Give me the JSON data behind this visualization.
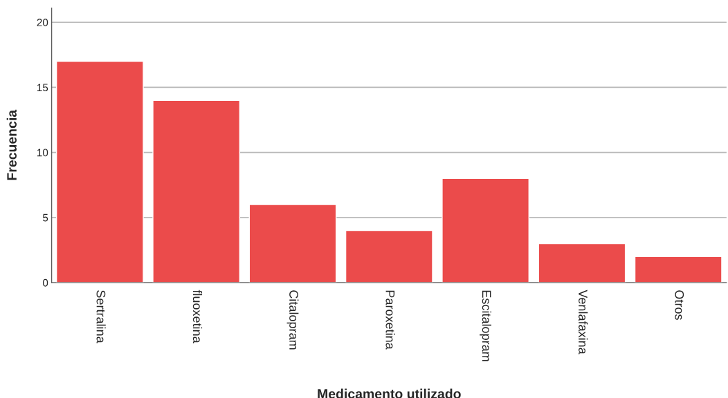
{
  "chart_data": {
    "type": "bar",
    "xlabel": "Medicamento utilizado",
    "ylabel": "Frecuencia",
    "categories": [
      "Sertralina",
      "fluoxetina",
      "Citalopram",
      "Paroxetina",
      "Escitalopram",
      "Venlafaxina",
      "Otros"
    ],
    "values": [
      17,
      14,
      6,
      4,
      8,
      3,
      2
    ],
    "color": "#eb4b4b",
    "ylim": [
      0,
      21.1
    ],
    "yticks": [
      0,
      5,
      10,
      15,
      20
    ],
    "grid": "y"
  }
}
